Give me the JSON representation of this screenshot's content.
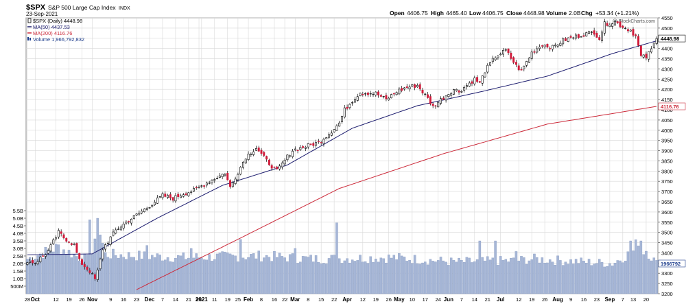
{
  "header": {
    "symbol": "$SPX",
    "name": "S&P 500 Large Cap Index",
    "exchange": "INDX",
    "date": "23-Sep-2021",
    "ohlc": {
      "open_label": "Open",
      "open": "4406.75",
      "high_label": "High",
      "high": "4465.40",
      "low_label": "Low",
      "low": "4406.75",
      "close_label": "Close",
      "close": "4448.98",
      "volume_label": "Volume",
      "volume": "2.0B",
      "chg_label": "Chg",
      "chg": "+53.34 (+1.21%)"
    },
    "watermark": "@ StockCharts.com"
  },
  "legend": [
    {
      "text": "$SPX (Daily) 4448.98",
      "color": "#000000",
      "icon": "candle-icon"
    },
    {
      "text": "MA(50) 4437.53",
      "color": "#1c1c6e",
      "icon": "line-icon"
    },
    {
      "text": "MA(200) 4116.76",
      "color": "#cc2a3a",
      "icon": "line-icon"
    },
    {
      "text": "Volume 1,966,792,832",
      "color": "#1c3c8c",
      "icon": "bar-icon"
    }
  ],
  "price_tags": {
    "close": "4448.98",
    "ma200": "4116.76",
    "volume": "1966792"
  },
  "colors": {
    "up": "#ffffff",
    "down": "#d11a3a",
    "ma50": "#1c1c6e",
    "ma200": "#cc2a3a",
    "volume": "#a6b6d6",
    "grid": "#d8d8d8"
  },
  "chart_data": {
    "type": "candlestick",
    "title": "$SPX S&P 500 Large Cap Index INDX",
    "ylim": [
      3200,
      4550
    ],
    "yticks": [
      3200,
      3250,
      3300,
      3350,
      3400,
      3450,
      3500,
      3550,
      3600,
      3650,
      3700,
      3750,
      3800,
      3850,
      3900,
      3950,
      4000,
      4050,
      4100,
      4150,
      4200,
      4250,
      4300,
      4350,
      4400,
      4450,
      4500,
      4550
    ],
    "volume_ticks": [
      "5.5B",
      "5.0B",
      "4.5B",
      "4.0B",
      "3.5B",
      "3.0B",
      "2.5B",
      "2.0B",
      "1.5B",
      "1.0B",
      "500M"
    ],
    "volume_tick_values": [
      5.5,
      5.0,
      4.5,
      4.0,
      3.5,
      3.0,
      2.5,
      2.0,
      1.5,
      1.0,
      0.5
    ],
    "x_labels": [
      "28",
      "Oct",
      "12",
      "19",
      "26",
      "Nov",
      "9",
      "16",
      "23",
      "Dec",
      "7",
      "14",
      "21",
      "28",
      "2021",
      "11",
      "19",
      "25",
      "Feb",
      "8",
      "16",
      "22",
      "Mar",
      "8",
      "15",
      "22",
      "Apr",
      "12",
      "19",
      "26",
      "May",
      "10",
      "17",
      "24",
      "Jun",
      "7",
      "14",
      "21",
      "Jul",
      "12",
      "19",
      "26",
      "Aug",
      "9",
      "16",
      "23",
      "Sep",
      "7",
      "13",
      "20"
    ],
    "x_label_index": [
      0,
      3,
      11,
      16,
      21,
      25,
      32,
      37,
      42,
      47,
      52,
      57,
      62,
      66,
      67,
      72,
      77,
      81,
      85,
      90,
      95,
      99,
      103,
      108,
      113,
      118,
      123,
      129,
      134,
      139,
      143,
      148,
      153,
      158,
      162,
      167,
      172,
      177,
      182,
      189,
      194,
      199,
      204,
      209,
      214,
      219,
      224,
      229,
      233,
      238
    ],
    "price_keypoints": {
      "index": [
        0,
        3,
        8,
        12,
        14,
        18,
        20,
        24,
        26,
        27,
        29,
        34,
        38,
        42,
        48,
        52,
        56,
        60,
        64,
        70,
        76,
        78,
        84,
        88,
        92,
        96,
        100,
        102,
        108,
        112,
        116,
        120,
        122,
        126,
        128,
        134,
        138,
        142,
        146,
        150,
        154,
        156,
        160,
        164,
        166,
        172,
        174,
        176,
        180,
        184,
        188,
        190,
        194,
        198,
        202,
        206,
        210,
        214,
        218,
        220,
        222,
        226,
        230,
        232,
        234,
        236,
        238,
        240,
        242
      ],
      "close": [
        3363,
        3352,
        3408,
        3500,
        3475,
        3439,
        3360,
        3310,
        3270,
        3310,
        3420,
        3510,
        3550,
        3585,
        3640,
        3680,
        3666,
        3690,
        3705,
        3750,
        3790,
        3720,
        3870,
        3915,
        3850,
        3800,
        3870,
        3902,
        3925,
        3940,
        3983,
        4035,
        4100,
        4160,
        4185,
        4180,
        4150,
        4190,
        4210,
        4220,
        4155,
        4115,
        4160,
        4200,
        4190,
        4250,
        4230,
        4290,
        4360,
        4390,
        4315,
        4290,
        4380,
        4420,
        4405,
        4440,
        4455,
        4470,
        4480,
        4450,
        4520,
        4530,
        4500,
        4490,
        4460,
        4360,
        4358,
        4395,
        4449
      ]
    },
    "ma50_keypoints": {
      "index": [
        0,
        25,
        50,
        75,
        100,
        125,
        150,
        175,
        200,
        225,
        242
      ],
      "value": [
        3390,
        3395,
        3570,
        3730,
        3830,
        4010,
        4120,
        4190,
        4265,
        4375,
        4437.53
      ]
    },
    "ma200_keypoints": {
      "index": [
        42,
        80,
        120,
        160,
        200,
        242
      ],
      "value": [
        3220,
        3460,
        3715,
        3885,
        4030,
        4116.76
      ]
    },
    "volume_keypoints_billions": {
      "index": [
        0,
        3,
        12,
        20,
        24,
        26,
        28,
        30,
        60,
        90,
        110,
        140,
        165,
        188,
        195,
        225,
        233,
        235,
        242
      ],
      "value": [
        2.3,
        2.5,
        3.1,
        2.4,
        2.2,
        3.2,
        4.0,
        2.6,
        2.4,
        2.5,
        2.3,
        2.4,
        2.1,
        2.2,
        2.3,
        2.0,
        2.8,
        3.6,
        2.0
      ]
    },
    "volume_spikes_billions": {
      "24": 4.9,
      "27": 5.0,
      "46": 3.2,
      "63": 3.0,
      "82": 3.6,
      "103": 3.0,
      "119": 4.7,
      "174": 3.5,
      "180": 3.5,
      "188": 2.8,
      "232": 3.5,
      "236": 3.5,
      "237": 2.6
    },
    "sessions": 243
  }
}
